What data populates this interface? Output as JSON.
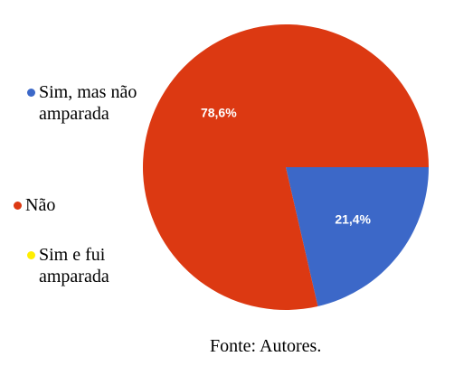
{
  "chart_data": {
    "type": "pie",
    "categories": [
      "Sim, mas não amparada",
      "Não",
      "Sim e fui amparada"
    ],
    "values": [
      21.4,
      78.6,
      0
    ],
    "value_labels": [
      "21,4%",
      "78,6%",
      null
    ],
    "colors": [
      "#3c68c8",
      "#dc3912",
      "#ffee00"
    ],
    "source": "Fonte: Autores."
  }
}
